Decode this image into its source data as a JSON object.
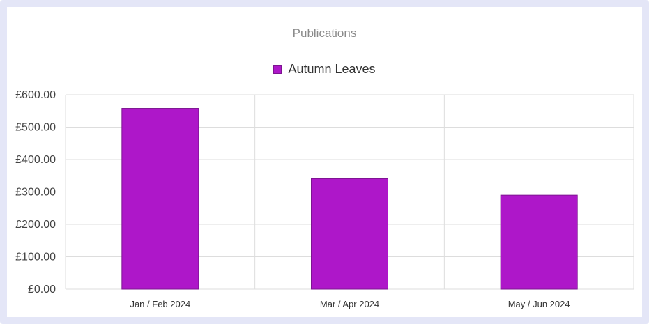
{
  "colors": {
    "frame": "#e4e6f7",
    "bar_fill": "#ae17c9",
    "bar_stroke": "#7d1491",
    "grid": "#dddddd"
  },
  "chart_data": {
    "type": "bar",
    "title": "Publications",
    "categories": [
      "Jan / Feb 2024",
      "Mar / Apr 2024",
      "May / Jun 2024"
    ],
    "series": [
      {
        "name": "Autumn Leaves",
        "values": [
          558,
          341,
          290
        ]
      }
    ],
    "ylim": [
      0,
      600
    ],
    "yticks": [
      "£0.00",
      "£100.00",
      "£200.00",
      "£300.00",
      "£400.00",
      "£500.00",
      "£600.00"
    ],
    "xlabel": "",
    "ylabel": "",
    "grid": true,
    "legend": "top-center"
  }
}
